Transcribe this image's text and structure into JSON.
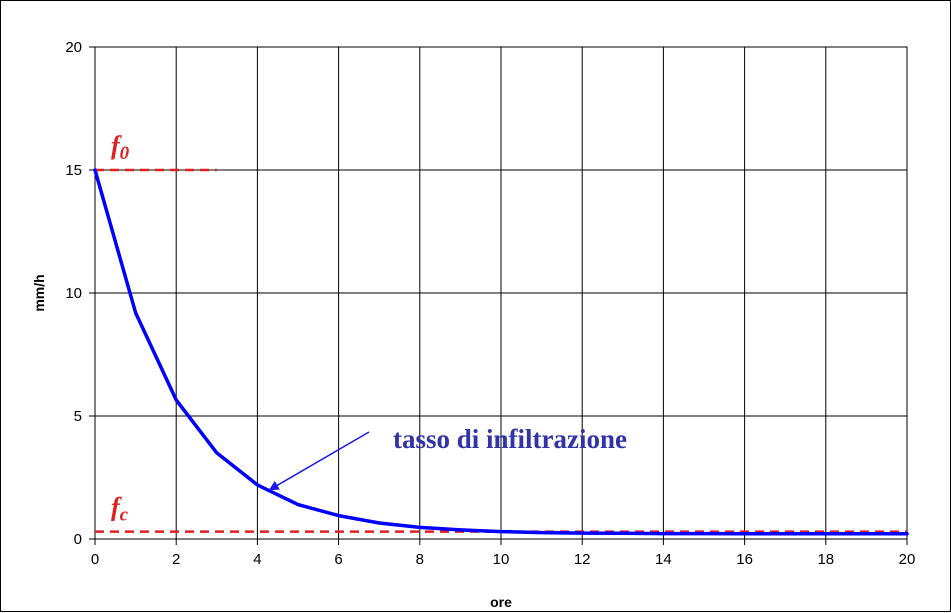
{
  "chart_data": {
    "type": "line",
    "xlabel": "ore",
    "ylabel": "mm/h",
    "xlim": [
      0,
      20
    ],
    "ylim": [
      0,
      20
    ],
    "x_ticks": [
      0,
      2,
      4,
      6,
      8,
      10,
      12,
      14,
      16,
      18,
      20
    ],
    "y_ticks": [
      0,
      5,
      10,
      15,
      20
    ],
    "grid": true,
    "series": [
      {
        "color": "#0000ff",
        "x": [
          0,
          1,
          2,
          3,
          4,
          5,
          6,
          7,
          8,
          9,
          10,
          11,
          12,
          13,
          14,
          15,
          16,
          17,
          18,
          19,
          20
        ],
        "values": [
          15,
          9.2,
          5.65,
          3.5,
          2.2,
          1.4,
          0.95,
          0.65,
          0.47,
          0.37,
          0.3,
          0.26,
          0.24,
          0.23,
          0.22,
          0.22,
          0.21,
          0.21,
          0.21,
          0.21,
          0.21
        ]
      }
    ],
    "reference_lines": [
      {
        "label_main": "f",
        "label_sub": "0",
        "y": 15,
        "x": [
          0,
          3
        ],
        "color": "#e02020",
        "style": "dashed"
      },
      {
        "label_main": "f",
        "label_sub": "c",
        "y": 0.3,
        "x": [
          0,
          20
        ],
        "color": "#e02020",
        "style": "dashed"
      }
    ],
    "annotation": {
      "text": "tasso di infiltrazione",
      "color": "#3333a8",
      "arrow_target": {
        "x": 4.3,
        "y": 2.0
      }
    }
  }
}
